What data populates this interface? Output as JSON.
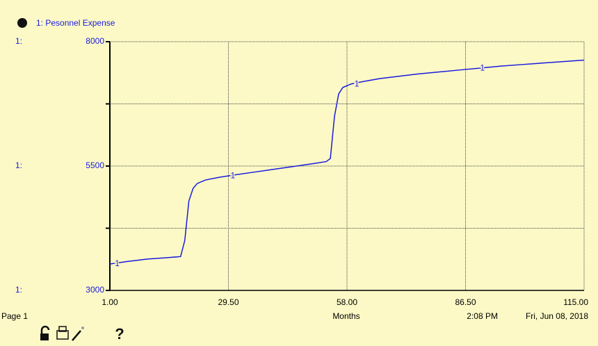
{
  "chart_data": {
    "type": "line",
    "series_prefix": "1:",
    "line_label": "1",
    "x_label": "Months",
    "page_label": "Page 1",
    "time": "2:08 PM",
    "date": "Fri, Jun 08, 2018",
    "help": "?",
    "x": [
      1,
      5,
      10,
      15,
      18,
      19,
      20,
      21,
      22,
      24,
      27,
      30,
      35,
      40,
      45,
      50,
      53,
      54,
      55,
      56,
      57,
      59,
      62,
      66,
      70,
      75,
      80,
      85,
      90,
      95,
      100,
      105,
      110,
      115
    ],
    "series": [
      {
        "name": "1: Pesonnel Expense",
        "color": "#1a1ae0",
        "values": [
          3530,
          3580,
          3630,
          3660,
          3680,
          4000,
          4800,
          5050,
          5150,
          5220,
          5270,
          5310,
          5370,
          5430,
          5490,
          5550,
          5590,
          5650,
          6500,
          6950,
          7080,
          7150,
          7200,
          7260,
          7300,
          7350,
          7390,
          7430,
          7470,
          7510,
          7540,
          7570,
          7600,
          7630
        ]
      }
    ],
    "xlim": [
      1,
      115
    ],
    "xticks": [
      {
        "value": 1,
        "label": "1.00"
      },
      {
        "value": 29.5,
        "label": "29.50"
      },
      {
        "value": 58,
        "label": "58.00"
      },
      {
        "value": 86.5,
        "label": "86.50"
      },
      {
        "value": 115,
        "label": "115.00"
      }
    ],
    "ylim": [
      3000,
      8000
    ],
    "yticks": [
      3000,
      5500,
      8000
    ],
    "minor_yticks": [
      4250,
      6750
    ],
    "grid": true
  }
}
